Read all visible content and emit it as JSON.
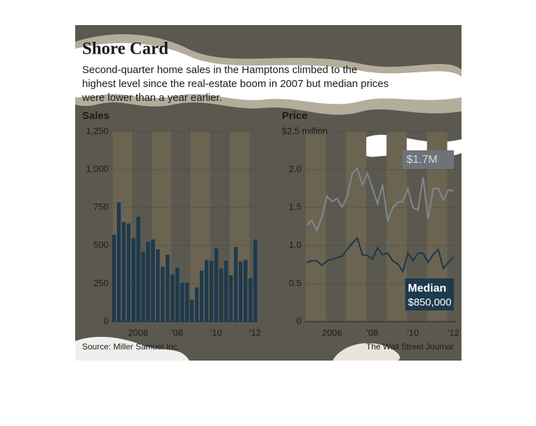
{
  "header": {
    "title": "Shore Card",
    "subtitle": [
      "Second-quarter home sales in the Hamptons climbed to the",
      "highest level since the real-estate boom in 2007 but median prices",
      "were lower than a year earlier."
    ],
    "source": "Source: Miller Samuel Inc.",
    "credit": "The Wall Street Journal"
  },
  "chart_data": [
    {
      "type": "bar",
      "title": "Sales",
      "categories": [
        null,
        null,
        null,
        null,
        null,
        "2006",
        null,
        null,
        null,
        null,
        null,
        null,
        null,
        "'08",
        null,
        null,
        null,
        null,
        null,
        null,
        null,
        "'10",
        null,
        null,
        null,
        null,
        null,
        null,
        null,
        "'12"
      ],
      "values": [
        570,
        785,
        655,
        645,
        550,
        690,
        460,
        525,
        540,
        475,
        360,
        440,
        310,
        355,
        255,
        255,
        145,
        225,
        335,
        405,
        400,
        480,
        350,
        400,
        305,
        490,
        395,
        405,
        285,
        540
      ],
      "color": "#1e3a4d",
      "ylim": [
        0,
        1250
      ],
      "yticks": [
        0,
        250,
        500,
        750,
        {
          "value": 1000,
          "label": "1,000"
        },
        {
          "value": 1250,
          "label": "1,250"
        }
      ],
      "grid": true
    },
    {
      "type": "line",
      "title": "Price",
      "categories": [
        null,
        null,
        null,
        null,
        null,
        "2006",
        null,
        null,
        null,
        null,
        null,
        null,
        null,
        "'08",
        null,
        null,
        null,
        null,
        null,
        null,
        null,
        "'10",
        null,
        null,
        null,
        null,
        null,
        null,
        null,
        "'12"
      ],
      "series": [
        {
          "color": "#80858a",
          "values": [
            1.27,
            1.33,
            1.2,
            1.38,
            1.65,
            1.58,
            1.62,
            1.5,
            1.65,
            1.95,
            2.02,
            1.8,
            1.95,
            1.75,
            1.55,
            1.8,
            1.32,
            1.5,
            1.57,
            1.58,
            1.75,
            1.5,
            1.47,
            1.9,
            1.35,
            1.75,
            1.75,
            1.6,
            1.73,
            1.72
          ]
        },
        {
          "name": "Median",
          "color": "#1e3a4d",
          "values": [
            0.78,
            0.8,
            0.8,
            0.74,
            0.8,
            0.82,
            0.84,
            0.86,
            0.95,
            1.03,
            1.1,
            0.88,
            0.87,
            0.82,
            0.97,
            0.88,
            0.9,
            0.8,
            0.76,
            0.66,
            0.9,
            0.8,
            0.9,
            0.9,
            0.78,
            0.88,
            0.95,
            0.7,
            0.78,
            0.85
          ]
        }
      ],
      "annotations": [
        "$1.7M",
        "$850,000"
      ],
      "ylim": [
        0,
        2.5
      ],
      "yticks": [
        0,
        0.5,
        {
          "value": 1,
          "label": "1.0"
        },
        1.5,
        {
          "value": 2,
          "label": "2.0"
        },
        {
          "value": 2.5,
          "label": "$2.5 million"
        }
      ],
      "grid": true
    }
  ]
}
